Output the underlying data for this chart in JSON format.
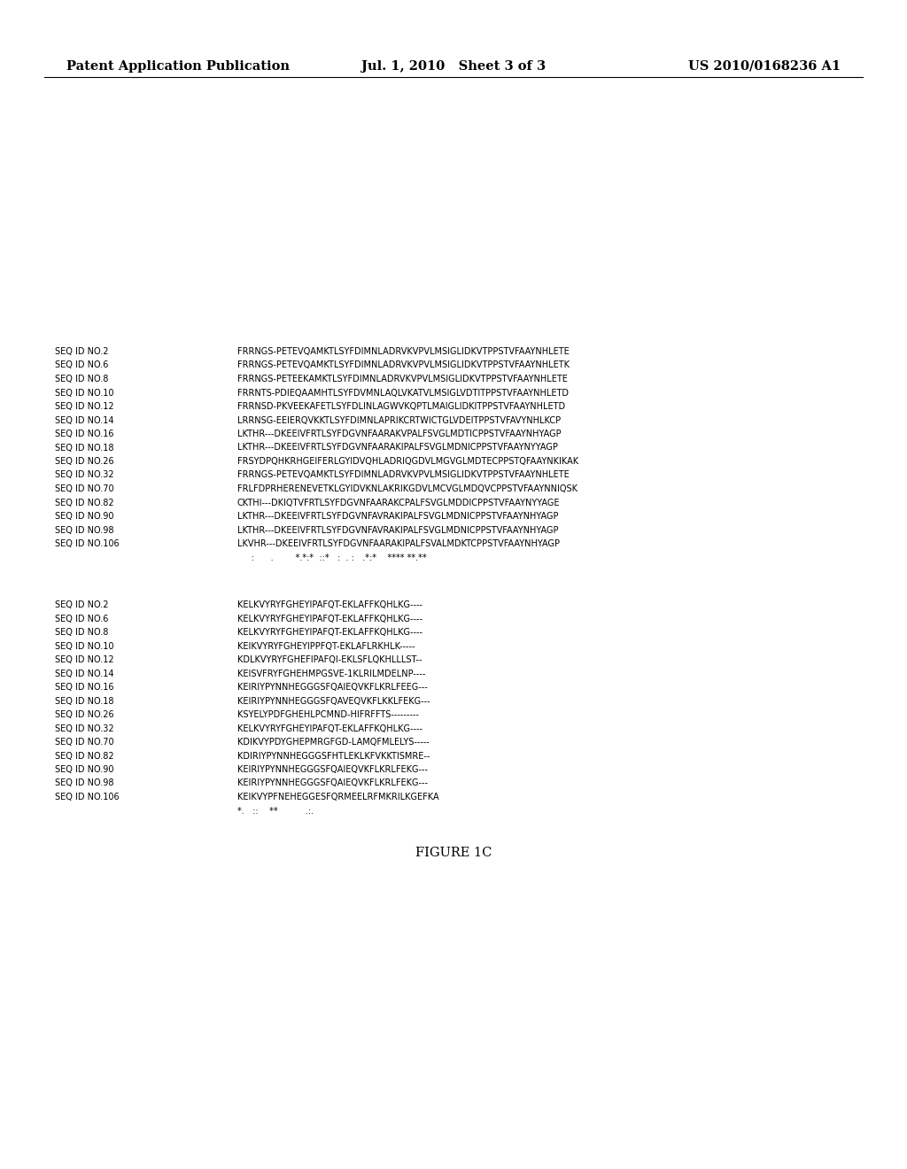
{
  "background_color": "#ffffff",
  "header_left": "Patent Application Publication",
  "header_center": "Jul. 1, 2010   Sheet 3 of 3",
  "header_right": "US 2010/0168236 A1",
  "block1_rows": [
    [
      "SEQ ID NO.2",
      "FRRNGS-PETEVQAMKTLSYFDIMNLADRVKVPVLMSIGLIDKVTPPSTVFAAYNHLETE"
    ],
    [
      "SEQ ID NO.6",
      "FRRNGS-PETEVQAMKTLSYFDIMNLADRVKVPVLMSIGLIDKVTPPSTVFAAYNHLETK"
    ],
    [
      "SEQ ID NO.8",
      "FRRNGS-PETEEKAMKTLSYFDIMNLADRVKVPVLMSIGLIDKVTPPSTVFAAYNHLETE"
    ],
    [
      "SEQ ID NO.10",
      "FRRNTS-PDIEQAAMHTLSYFDVMNLAQLVKATVLMSIGLVDTITPPSTVFAAYNHLETD"
    ],
    [
      "SEQ ID NO.12",
      "FRRNSD-PKVEEKAFETLSYFDLINLAGWVKQPTLMAIGLIDKITPPSTVFAAYNHLETD"
    ],
    [
      "SEQ ID NO.14",
      "LRRNSG-EEIERQVKKTLSYFDIMNLAPRIKCRTWICTGLVDEITPPSTVFAVYNHLKCP"
    ],
    [
      "SEQ ID NO.16",
      "LKTHR---DKEEIVFRTLSYFDGVNFAARAKVPALFSVGLMDTICPPSTVFAAYNHYAGP"
    ],
    [
      "SEQ ID NO.18",
      "LKTHR---DKEEIVFRTLSYFDGVNFAARAKIPALFSVGLMDNICPPSTVFAAYNYYAGP"
    ],
    [
      "SEQ ID NO.26",
      "FRSYDPQHKRHGEIFERLGYIDVQHLADRIQGDVLMGVGLMDTECPPSTQFAAYNKIKAK"
    ],
    [
      "SEQ ID NO.32",
      "FRRNGS-PETEVQAMKTLSYFDIMNLADRVKVPVLMSIGLIDKVTPPSTVFAAYNHLETE"
    ],
    [
      "SEQ ID NO.70",
      "FRLFDPRHERENEVETKLGYIDVKNLAKRIKGDVLMCVGLMDQVCPPSTVFAAYNNIQSK"
    ],
    [
      "SEQ ID NO.82",
      "CKTHI---DKIQTVFRTLSYFDGVNFAARAKCPALFSVGLMDDICPPSTVFAAYNYYAGE"
    ],
    [
      "SEQ ID NO.90",
      "LKTHR---DKEEIVFRTLSYFDGVNFAVRAKIPALFSVGLMDNICPPSTVFAAYNHYAGP"
    ],
    [
      "SEQ ID NO.98",
      "LKTHR---DKEEIVFRTLSYFDGVNFAVRAKIPALFSVGLMDNICPPSTVFAAYNHYAGP"
    ],
    [
      "SEQ ID NO.106",
      "LKVHR---DKEEIVFRTLSYFDGVNFAARAKIPALFSVALMDKTCPPSTVFAAYNHYAGP"
    ]
  ],
  "block1_conservation": "     :      .        *.*:*  ::*   :  . :   .*:*    **** **.**",
  "block2_rows": [
    [
      "SEQ ID NO.2",
      "KELKVYRYFGHEYIPAFQT-EKLAFFKQHLKG----"
    ],
    [
      "SEQ ID NO.6",
      "KELKVYRYFGHEYIPAFQT-EKLAFFKQHLKG----"
    ],
    [
      "SEQ ID NO.8",
      "KELKVYRYFGHEYIPAFQT-EKLAFFKQHLKG----"
    ],
    [
      "SEQ ID NO.10",
      "KEIKVYRYFGHEYIPPFQT-EKLAFLRKHLK-----"
    ],
    [
      "SEQ ID NO.12",
      "KDLKVYRYFGHEFIPAFQI-EKLSFLQKHLLLST--"
    ],
    [
      "SEQ ID NO.14",
      "KEISVFRYFGHEHMPGSVE-1KLRILMDELNP----"
    ],
    [
      "SEQ ID NO.16",
      "KEIRIYPYNNHEGGGSFQAIEQVKFLKRLFEEG---"
    ],
    [
      "SEQ ID NO.18",
      "KEIRIYPYNNHEGGGSFQAVEQVKFLKKLFEKG---"
    ],
    [
      "SEQ ID NO.26",
      "KSYELYPDFGHEHLPCMND-HIFRFFTS---------"
    ],
    [
      "SEQ ID NO.32",
      "KELKVYRYFGHEYIPAFQT-EKLAFFKQHLKG----"
    ],
    [
      "SEQ ID NO.70",
      "KDIKVYPDYGHEPMRGFGD-LAMQFMLELYS-----"
    ],
    [
      "SEQ ID NO.82",
      "KDIRIYPYNNHEGGGSFHTLEKLKFVKKTISMRE--"
    ],
    [
      "SEQ ID NO.90",
      "KEIRIYPYNNHEGGGSFQAIEQVKFLKRLFEKG---"
    ],
    [
      "SEQ ID NO.98",
      "KEIRIYPYNNHEGGGSFQAIEQVKFLKRLFEKG---"
    ],
    [
      "SEQ ID NO.106",
      "KEIKVYPFNEHEGGESFQRMEELRFMKRILKGEFKA"
    ]
  ],
  "block2_conservation": "*.   ::    **          .:.",
  "figure_label": "FIGURE 1C"
}
